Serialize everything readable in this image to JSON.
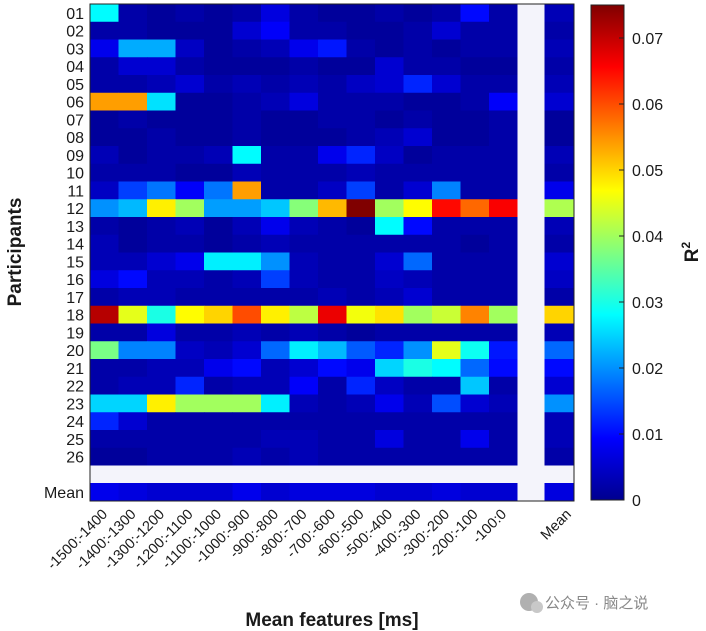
{
  "chart_data": {
    "type": "heatmap",
    "ylabel": "Participants",
    "xlabel": "Mean features [ms]",
    "colorbar_label": "R",
    "colorbar_label_sup": "2",
    "clim": [
      0,
      0.075
    ],
    "colorbar_ticks": [
      0,
      0.01,
      0.02,
      0.03,
      0.04,
      0.05,
      0.06,
      0.07
    ],
    "colorbar_tick_labels": [
      "0",
      "0.01",
      "0.02",
      "0.03",
      "0.04",
      "0.05",
      "0.06",
      "0.07"
    ],
    "columns": [
      "-1500:-1400",
      "-1400:-1300",
      "-1300:-1200",
      "-1200:-1100",
      "-1100:-1000",
      "-1000:-900",
      "-900:-800",
      "-800:-700",
      "-700:-600",
      "-600:-500",
      "-500:-400",
      "-400:-300",
      "-300:-200",
      "-200:-100",
      "-100:0"
    ],
    "mean_label": "Mean",
    "rows": [
      "01",
      "02",
      "03",
      "04",
      "05",
      "06",
      "07",
      "08",
      "09",
      "10",
      "11",
      "12",
      "13",
      "14",
      "15",
      "16",
      "17",
      "18",
      "19",
      "20",
      "21",
      "22",
      "23",
      "24",
      "25",
      "26"
    ],
    "values": [
      [
        0.028,
        0.003,
        0.002,
        0.003,
        0.002,
        0.003,
        0.007,
        0.003,
        0.002,
        0.002,
        0.003,
        0.002,
        0.003,
        0.01,
        0.003,
        0.004
      ],
      [
        0.003,
        0.003,
        0.002,
        0.002,
        0.002,
        0.006,
        0.009,
        0.003,
        0.003,
        0.002,
        0.002,
        0.003,
        0.006,
        0.003,
        0.003,
        0.003
      ],
      [
        0.008,
        0.022,
        0.022,
        0.005,
        0.002,
        0.003,
        0.004,
        0.008,
        0.011,
        0.003,
        0.002,
        0.003,
        0.002,
        0.003,
        0.003,
        0.004
      ],
      [
        0.003,
        0.006,
        0.006,
        0.003,
        0.002,
        0.002,
        0.002,
        0.003,
        0.002,
        0.002,
        0.006,
        0.003,
        0.003,
        0.002,
        0.002,
        0.003
      ],
      [
        0.003,
        0.003,
        0.004,
        0.006,
        0.003,
        0.004,
        0.003,
        0.004,
        0.003,
        0.005,
        0.006,
        0.012,
        0.006,
        0.003,
        0.003,
        0.004
      ],
      [
        0.054,
        0.054,
        0.026,
        0.002,
        0.002,
        0.003,
        0.004,
        0.007,
        0.003,
        0.003,
        0.003,
        0.002,
        0.002,
        0.003,
        0.009,
        0.006
      ],
      [
        0.002,
        0.003,
        0.002,
        0.002,
        0.002,
        0.003,
        0.002,
        0.002,
        0.003,
        0.003,
        0.002,
        0.003,
        0.002,
        0.002,
        0.003,
        0.002
      ],
      [
        0.002,
        0.002,
        0.003,
        0.002,
        0.002,
        0.003,
        0.002,
        0.002,
        0.002,
        0.003,
        0.004,
        0.006,
        0.002,
        0.002,
        0.003,
        0.002
      ],
      [
        0.004,
        0.002,
        0.003,
        0.003,
        0.004,
        0.028,
        0.003,
        0.003,
        0.008,
        0.012,
        0.005,
        0.002,
        0.003,
        0.003,
        0.003,
        0.004
      ],
      [
        0.003,
        0.003,
        0.003,
        0.002,
        0.002,
        0.004,
        0.003,
        0.003,
        0.003,
        0.004,
        0.003,
        0.003,
        0.003,
        0.003,
        0.003,
        0.003
      ],
      [
        0.005,
        0.014,
        0.018,
        0.009,
        0.018,
        0.054,
        0.003,
        0.003,
        0.005,
        0.014,
        0.003,
        0.006,
        0.019,
        0.003,
        0.003,
        0.008
      ],
      [
        0.02,
        0.023,
        0.048,
        0.04,
        0.021,
        0.021,
        0.024,
        0.038,
        0.052,
        0.075,
        0.04,
        0.047,
        0.065,
        0.058,
        0.066,
        0.041
      ],
      [
        0.003,
        0.002,
        0.003,
        0.004,
        0.002,
        0.004,
        0.008,
        0.004,
        0.003,
        0.002,
        0.028,
        0.01,
        0.003,
        0.003,
        0.003,
        0.004
      ],
      [
        0.004,
        0.002,
        0.003,
        0.003,
        0.002,
        0.003,
        0.004,
        0.003,
        0.003,
        0.003,
        0.003,
        0.003,
        0.003,
        0.002,
        0.003,
        0.003
      ],
      [
        0.004,
        0.004,
        0.006,
        0.008,
        0.027,
        0.027,
        0.02,
        0.004,
        0.003,
        0.003,
        0.006,
        0.017,
        0.003,
        0.003,
        0.003,
        0.006
      ],
      [
        0.007,
        0.01,
        0.004,
        0.004,
        0.003,
        0.004,
        0.014,
        0.004,
        0.003,
        0.003,
        0.005,
        0.004,
        0.003,
        0.003,
        0.003,
        0.005
      ],
      [
        0.003,
        0.004,
        0.004,
        0.003,
        0.003,
        0.003,
        0.003,
        0.003,
        0.004,
        0.003,
        0.004,
        0.006,
        0.003,
        0.003,
        0.003,
        0.003
      ],
      [
        0.071,
        0.045,
        0.03,
        0.047,
        0.05,
        0.06,
        0.048,
        0.042,
        0.067,
        0.046,
        0.049,
        0.04,
        0.043,
        0.056,
        0.04,
        0.05
      ],
      [
        0.003,
        0.003,
        0.007,
        0.003,
        0.003,
        0.004,
        0.003,
        0.004,
        0.003,
        0.002,
        0.003,
        0.003,
        0.003,
        0.003,
        0.003,
        0.004
      ],
      [
        0.037,
        0.019,
        0.019,
        0.005,
        0.004,
        0.006,
        0.017,
        0.027,
        0.023,
        0.016,
        0.012,
        0.02,
        0.045,
        0.029,
        0.011,
        0.017
      ],
      [
        0.003,
        0.003,
        0.004,
        0.004,
        0.008,
        0.01,
        0.004,
        0.006,
        0.01,
        0.008,
        0.025,
        0.03,
        0.028,
        0.017,
        0.01,
        0.01
      ],
      [
        0.003,
        0.004,
        0.004,
        0.012,
        0.003,
        0.004,
        0.004,
        0.009,
        0.003,
        0.012,
        0.005,
        0.003,
        0.003,
        0.024,
        0.003,
        0.006
      ],
      [
        0.025,
        0.025,
        0.048,
        0.04,
        0.04,
        0.04,
        0.027,
        0.004,
        0.003,
        0.004,
        0.008,
        0.004,
        0.015,
        0.006,
        0.004,
        0.02
      ],
      [
        0.012,
        0.006,
        0.003,
        0.003,
        0.003,
        0.003,
        0.003,
        0.003,
        0.003,
        0.003,
        0.003,
        0.003,
        0.003,
        0.003,
        0.003,
        0.004
      ],
      [
        0.003,
        0.003,
        0.003,
        0.003,
        0.003,
        0.003,
        0.004,
        0.004,
        0.003,
        0.003,
        0.007,
        0.003,
        0.003,
        0.008,
        0.003,
        0.004
      ],
      [
        0.002,
        0.002,
        0.003,
        0.003,
        0.003,
        0.004,
        0.003,
        0.004,
        0.003,
        0.003,
        0.003,
        0.003,
        0.003,
        0.003,
        0.003,
        0.003
      ]
    ],
    "mean_row": [
      0.008,
      0.007,
      0.006,
      0.006,
      0.006,
      0.008,
      0.006,
      0.007,
      0.007,
      0.007,
      0.006,
      0.006,
      0.007,
      0.006,
      0.006,
      0.007
    ]
  },
  "watermark": "公众号 · 脑之说"
}
